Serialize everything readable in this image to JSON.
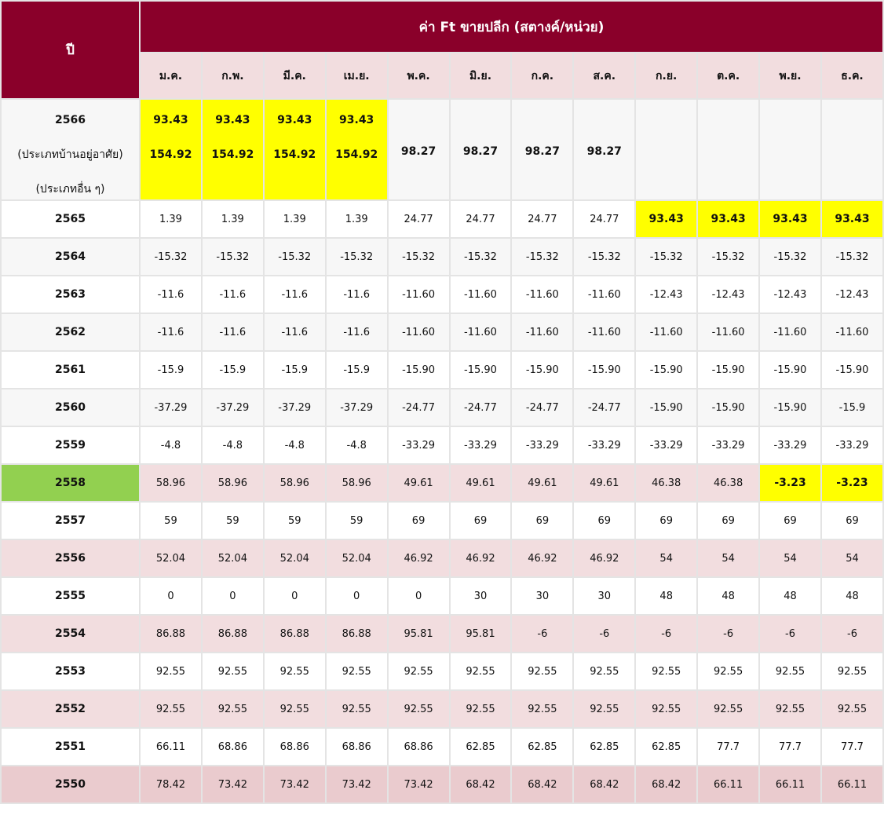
{
  "header": {
    "year_label": "ปี",
    "title": "ค่า Ft ขายปลีก (สตางค์/หน่วย)",
    "months": [
      "ม.ค.",
      "ก.พ.",
      "มี.ค.",
      "เม.ย.",
      "พ.ค.",
      "มิ.ย.",
      "ก.ค.",
      "ส.ค.",
      "ก.ย.",
      "ต.ค.",
      "พ.ย.",
      "ธ.ค."
    ]
  },
  "first_row": {
    "year": "2566",
    "label_residential": "(ประเภทบ้านอยู่อาศัย)",
    "label_other": "(ประเภทอื่น ๆ)",
    "dual_values": [
      {
        "a": "93.43",
        "b": "154.92"
      },
      {
        "a": "93.43",
        "b": "154.92"
      },
      {
        "a": "93.43",
        "b": "154.92"
      },
      {
        "a": "93.43",
        "b": "154.92"
      }
    ],
    "single_values": [
      "98.27",
      "98.27",
      "98.27",
      "98.27"
    ]
  },
  "rows": [
    {
      "year": "2565",
      "values": [
        "1.39",
        "1.39",
        "1.39",
        "1.39",
        "24.77",
        "24.77",
        "24.77",
        "24.77",
        "93.43",
        "93.43",
        "93.43",
        "93.43"
      ]
    },
    {
      "year": "2564",
      "values": [
        "-15.32",
        "-15.32",
        "-15.32",
        "-15.32",
        "-15.32",
        "-15.32",
        "-15.32",
        "-15.32",
        "-15.32",
        "-15.32",
        "-15.32",
        "-15.32"
      ]
    },
    {
      "year": "2563",
      "values": [
        "-11.6",
        "-11.6",
        "-11.6",
        "-11.6",
        "-11.60",
        "-11.60",
        "-11.60",
        "-11.60",
        "-12.43",
        "-12.43",
        "-12.43",
        "-12.43"
      ]
    },
    {
      "year": "2562",
      "values": [
        "-11.6",
        "-11.6",
        "-11.6",
        "-11.6",
        "-11.60",
        "-11.60",
        "-11.60",
        "-11.60",
        "-11.60",
        "-11.60",
        "-11.60",
        "-11.60"
      ]
    },
    {
      "year": "2561",
      "values": [
        "-15.9",
        "-15.9",
        "-15.9",
        "-15.9",
        "-15.90",
        "-15.90",
        "-15.90",
        "-15.90",
        "-15.90",
        "-15.90",
        "-15.90",
        "-15.90"
      ]
    },
    {
      "year": "2560",
      "values": [
        "-37.29",
        "-37.29",
        "-37.29",
        "-37.29",
        "-24.77",
        "-24.77",
        "-24.77",
        "-24.77",
        "-15.90",
        "-15.90",
        "-15.90",
        "-15.9"
      ]
    },
    {
      "year": "2559",
      "values": [
        "-4.8",
        "-4.8",
        "-4.8",
        "-4.8",
        "-33.29",
        "-33.29",
        "-33.29",
        "-33.29",
        "-33.29",
        "-33.29",
        "-33.29",
        "-33.29"
      ]
    },
    {
      "year": "2558",
      "values": [
        "58.96",
        "58.96",
        "58.96",
        "58.96",
        "49.61",
        "49.61",
        "49.61",
        "49.61",
        "46.38",
        "46.38",
        "-3.23",
        "-3.23"
      ]
    },
    {
      "year": "2557",
      "values": [
        "59",
        "59",
        "59",
        "59",
        "69",
        "69",
        "69",
        "69",
        "69",
        "69",
        "69",
        "69"
      ]
    },
    {
      "year": "2556",
      "values": [
        "52.04",
        "52.04",
        "52.04",
        "52.04",
        "46.92",
        "46.92",
        "46.92",
        "46.92",
        "54",
        "54",
        "54",
        "54"
      ]
    },
    {
      "year": "2555",
      "values": [
        "0",
        "0",
        "0",
        "0",
        "0",
        "30",
        "30",
        "30",
        "48",
        "48",
        "48",
        "48"
      ]
    },
    {
      "year": "2554",
      "values": [
        "86.88",
        "86.88",
        "86.88",
        "86.88",
        "95.81",
        "95.81",
        "-6",
        "-6",
        "-6",
        "-6",
        "-6",
        "-6"
      ]
    },
    {
      "year": "2553",
      "values": [
        "92.55",
        "92.55",
        "92.55",
        "92.55",
        "92.55",
        "92.55",
        "92.55",
        "92.55",
        "92.55",
        "92.55",
        "92.55",
        "92.55"
      ]
    },
    {
      "year": "2552",
      "values": [
        "92.55",
        "92.55",
        "92.55",
        "92.55",
        "92.55",
        "92.55",
        "92.55",
        "92.55",
        "92.55",
        "92.55",
        "92.55",
        "92.55"
      ]
    },
    {
      "year": "2551",
      "values": [
        "66.11",
        "68.86",
        "68.86",
        "68.86",
        "68.86",
        "62.85",
        "62.85",
        "62.85",
        "62.85",
        "77.7",
        "77.7",
        "77.7"
      ]
    },
    {
      "year": "2550",
      "values": [
        "78.42",
        "73.42",
        "73.42",
        "73.42",
        "73.42",
        "68.42",
        "68.42",
        "68.42",
        "68.42",
        "66.11",
        "66.11",
        "66.11"
      ]
    }
  ],
  "colors": {
    "header_bg": "#8a002a",
    "month_bg": "#f2dddf",
    "highlight_yellow": "#ffff00",
    "highlight_green": "#92d050"
  }
}
